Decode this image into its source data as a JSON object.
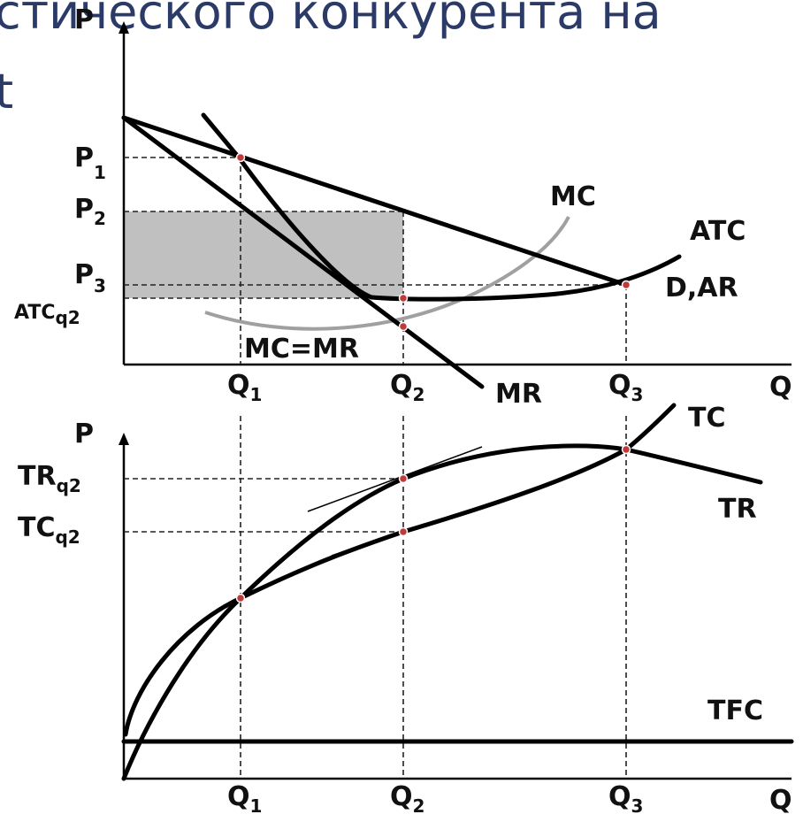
{
  "header_fragment": {
    "line1": "стического конкурента на",
    "line2": "t"
  },
  "colors": {
    "shade": "#c0c0c0",
    "mc_curve": "#a0a0a0",
    "ink": "#000000",
    "point": "#c03a3a",
    "header_text": "#2b3a66"
  },
  "top_panel": {
    "axis_y": "P",
    "axis_x": "Q",
    "price_labels": {
      "p1": {
        "main": "P",
        "sub": "1"
      },
      "p2": {
        "main": "P",
        "sub": "2"
      },
      "p3": {
        "main": "P",
        "sub": "3"
      },
      "atc": {
        "main": "ATC",
        "sub": "q2"
      }
    },
    "quantity_labels": {
      "q1": {
        "main": "Q",
        "sub": "1"
      },
      "q2": {
        "main": "Q",
        "sub": "2"
      },
      "q3": {
        "main": "Q",
        "sub": "3"
      }
    },
    "curve_labels": {
      "mc": "MC",
      "atc": "ATC",
      "demand": "D,AR",
      "mr": "MR",
      "equality": "MC=MR"
    }
  },
  "bottom_panel": {
    "axis_y": "P",
    "axis_x": "Q",
    "value_labels": {
      "tr": {
        "main": "TR",
        "sub": "q2"
      },
      "tc": {
        "main": "TC",
        "sub": "q2"
      }
    },
    "quantity_labels": {
      "q1": {
        "main": "Q",
        "sub": "1"
      },
      "q2": {
        "main": "Q",
        "sub": "2"
      },
      "q3": {
        "main": "Q",
        "sub": "3"
      }
    },
    "curve_labels": {
      "tc": "TC",
      "tr": "TR",
      "tfc": "TFC"
    }
  }
}
